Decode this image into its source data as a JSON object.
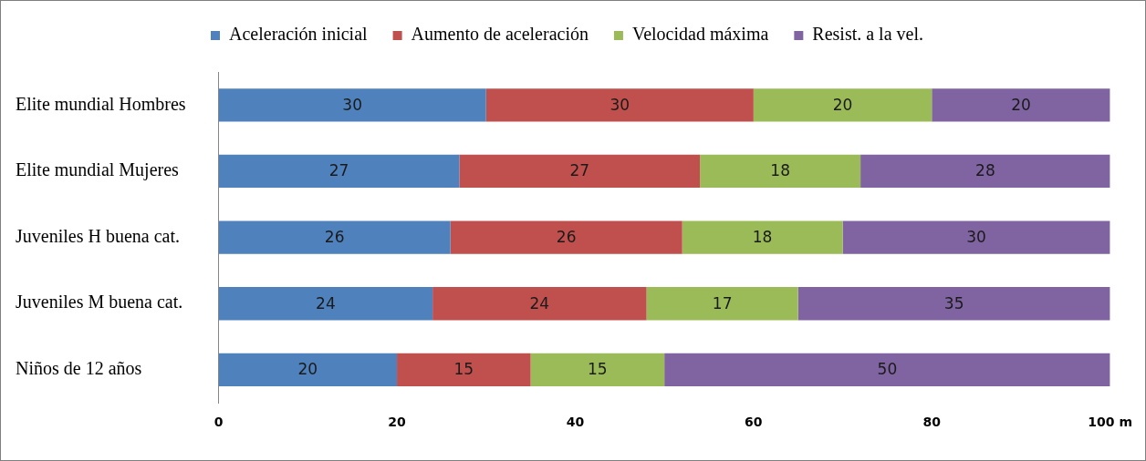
{
  "chart_data": {
    "type": "bar",
    "orientation": "horizontal",
    "stacked": true,
    "categories": [
      "Elite mundial Hombres",
      "Elite mundial Mujeres",
      "Juveniles H buena cat.",
      "Juveniles M buena cat.",
      "Niños de 12 años"
    ],
    "series": [
      {
        "name": "Aceleración inicial",
        "color": "#4f81bd",
        "values": [
          30,
          27,
          26,
          24,
          20
        ]
      },
      {
        "name": "Aumento de aceleración",
        "color": "#c0504d",
        "values": [
          30,
          27,
          26,
          24,
          15
        ]
      },
      {
        "name": "Velocidad máxima",
        "color": "#9bbb59",
        "values": [
          20,
          18,
          18,
          17,
          15
        ]
      },
      {
        "name": "Resist. a la vel.",
        "color": "#8064a2",
        "values": [
          20,
          28,
          30,
          35,
          50
        ]
      }
    ],
    "xlim": [
      0,
      100
    ],
    "xticks": [
      0,
      20,
      40,
      60,
      80,
      {
        "value": 100,
        "label": "100 m"
      }
    ],
    "data_labels": true,
    "legend": "top"
  }
}
